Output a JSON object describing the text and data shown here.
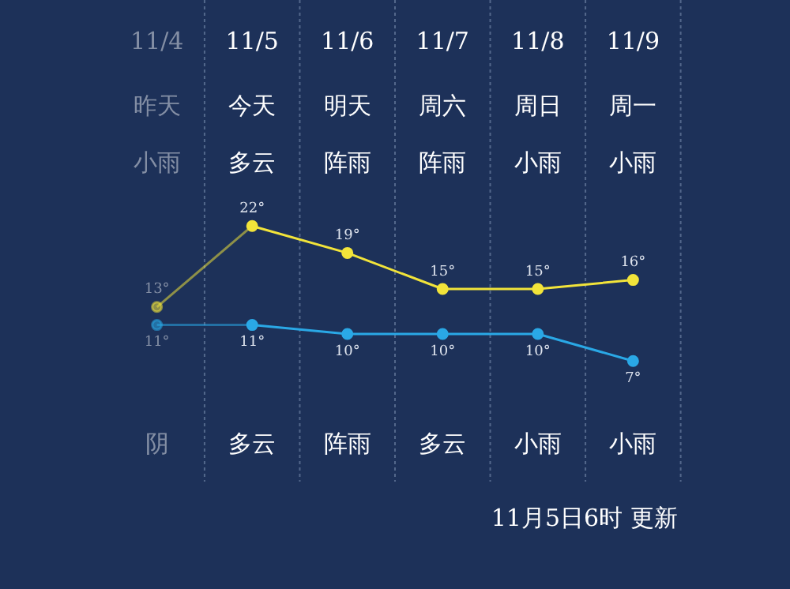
{
  "chart_data": {
    "type": "line",
    "categories": [
      "11/4",
      "11/5",
      "11/6",
      "11/7",
      "11/8",
      "11/9"
    ],
    "series": [
      {
        "color": "#f2e43a",
        "values": [
          13,
          22,
          19,
          15,
          15,
          16
        ],
        "value_labels": [
          "13°",
          "22°",
          "19°",
          "15°",
          "15°",
          "16°"
        ]
      },
      {
        "color": "#2aa8e6",
        "values": [
          11,
          11,
          10,
          10,
          10,
          7
        ],
        "value_labels": [
          "11°",
          "11°",
          "10°",
          "10°",
          "10°",
          "7°"
        ]
      }
    ],
    "annotations": [
      "昨天",
      "今天",
      "明天",
      "周六",
      "周日",
      "周一",
      "小雨",
      "多云",
      "阵雨",
      "阵雨",
      "小雨",
      "小雨",
      "阴",
      "多云",
      "阵雨",
      "多云",
      "小雨",
      "小雨",
      "11月5日6时 更新"
    ],
    "grid": "x",
    "legend": false,
    "tick_labels": "x",
    "marker": "circle",
    "line_style": "solid"
  }
}
